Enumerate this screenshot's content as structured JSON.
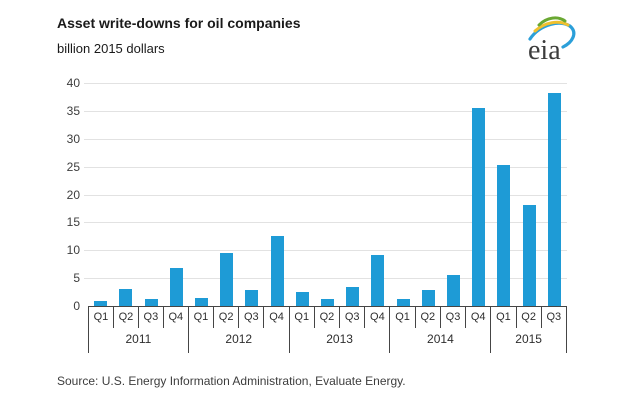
{
  "header": {
    "title": "Asset write-downs for oil companies",
    "subtitle": "billion 2015 dollars"
  },
  "logo": {
    "text": "eia"
  },
  "footer": {
    "source": "Source:  U.S. Energy Information Administration, Evaluate Energy."
  },
  "chart_data": {
    "type": "bar",
    "title": "Asset write-downs for oil companies",
    "ylabel": "billion 2015 dollars",
    "xlabel": "",
    "ylim": [
      0,
      40
    ],
    "yticks": [
      0,
      5,
      10,
      15,
      20,
      25,
      30,
      35,
      40
    ],
    "grid": true,
    "legend_position": "none",
    "bar_color": "#1e9bd6",
    "grid_color": "#e2e2e2",
    "axis_color": "#454545",
    "groups": [
      {
        "year": "2011",
        "quarters": [
          "Q1",
          "Q2",
          "Q3",
          "Q4"
        ],
        "values": [
          0.9,
          3.1,
          1.2,
          6.8
        ]
      },
      {
        "year": "2012",
        "quarters": [
          "Q1",
          "Q2",
          "Q3",
          "Q4"
        ],
        "values": [
          1.4,
          9.5,
          2.9,
          12.6
        ]
      },
      {
        "year": "2013",
        "quarters": [
          "Q1",
          "Q2",
          "Q3",
          "Q4"
        ],
        "values": [
          2.5,
          1.2,
          3.4,
          9.1
        ]
      },
      {
        "year": "2014",
        "quarters": [
          "Q1",
          "Q2",
          "Q3",
          "Q4"
        ],
        "values": [
          1.3,
          2.9,
          5.5,
          35.6
        ]
      },
      {
        "year": "2015",
        "quarters": [
          "Q1",
          "Q2",
          "Q3"
        ],
        "values": [
          25.3,
          18.1,
          38.2
        ]
      }
    ]
  }
}
